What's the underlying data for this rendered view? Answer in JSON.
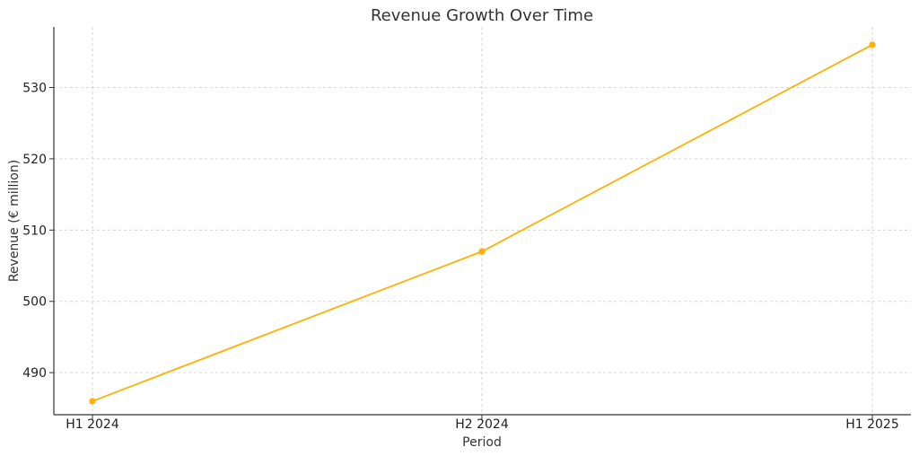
{
  "chart_data": {
    "type": "line",
    "title": "Revenue Growth Over Time",
    "xlabel": "Period",
    "ylabel": "Revenue (€ million)",
    "categories": [
      "H1 2024",
      "H2 2024",
      "H1 2025"
    ],
    "series": [
      {
        "values": [
          486,
          507,
          536
        ],
        "color": "#FFB000"
      }
    ],
    "ylim": [
      484.1,
      538.5
    ],
    "yticks": [
      490,
      500,
      510,
      520,
      530
    ],
    "grid": true,
    "axis_color": "#333333",
    "grid_color": "#cccccc"
  }
}
